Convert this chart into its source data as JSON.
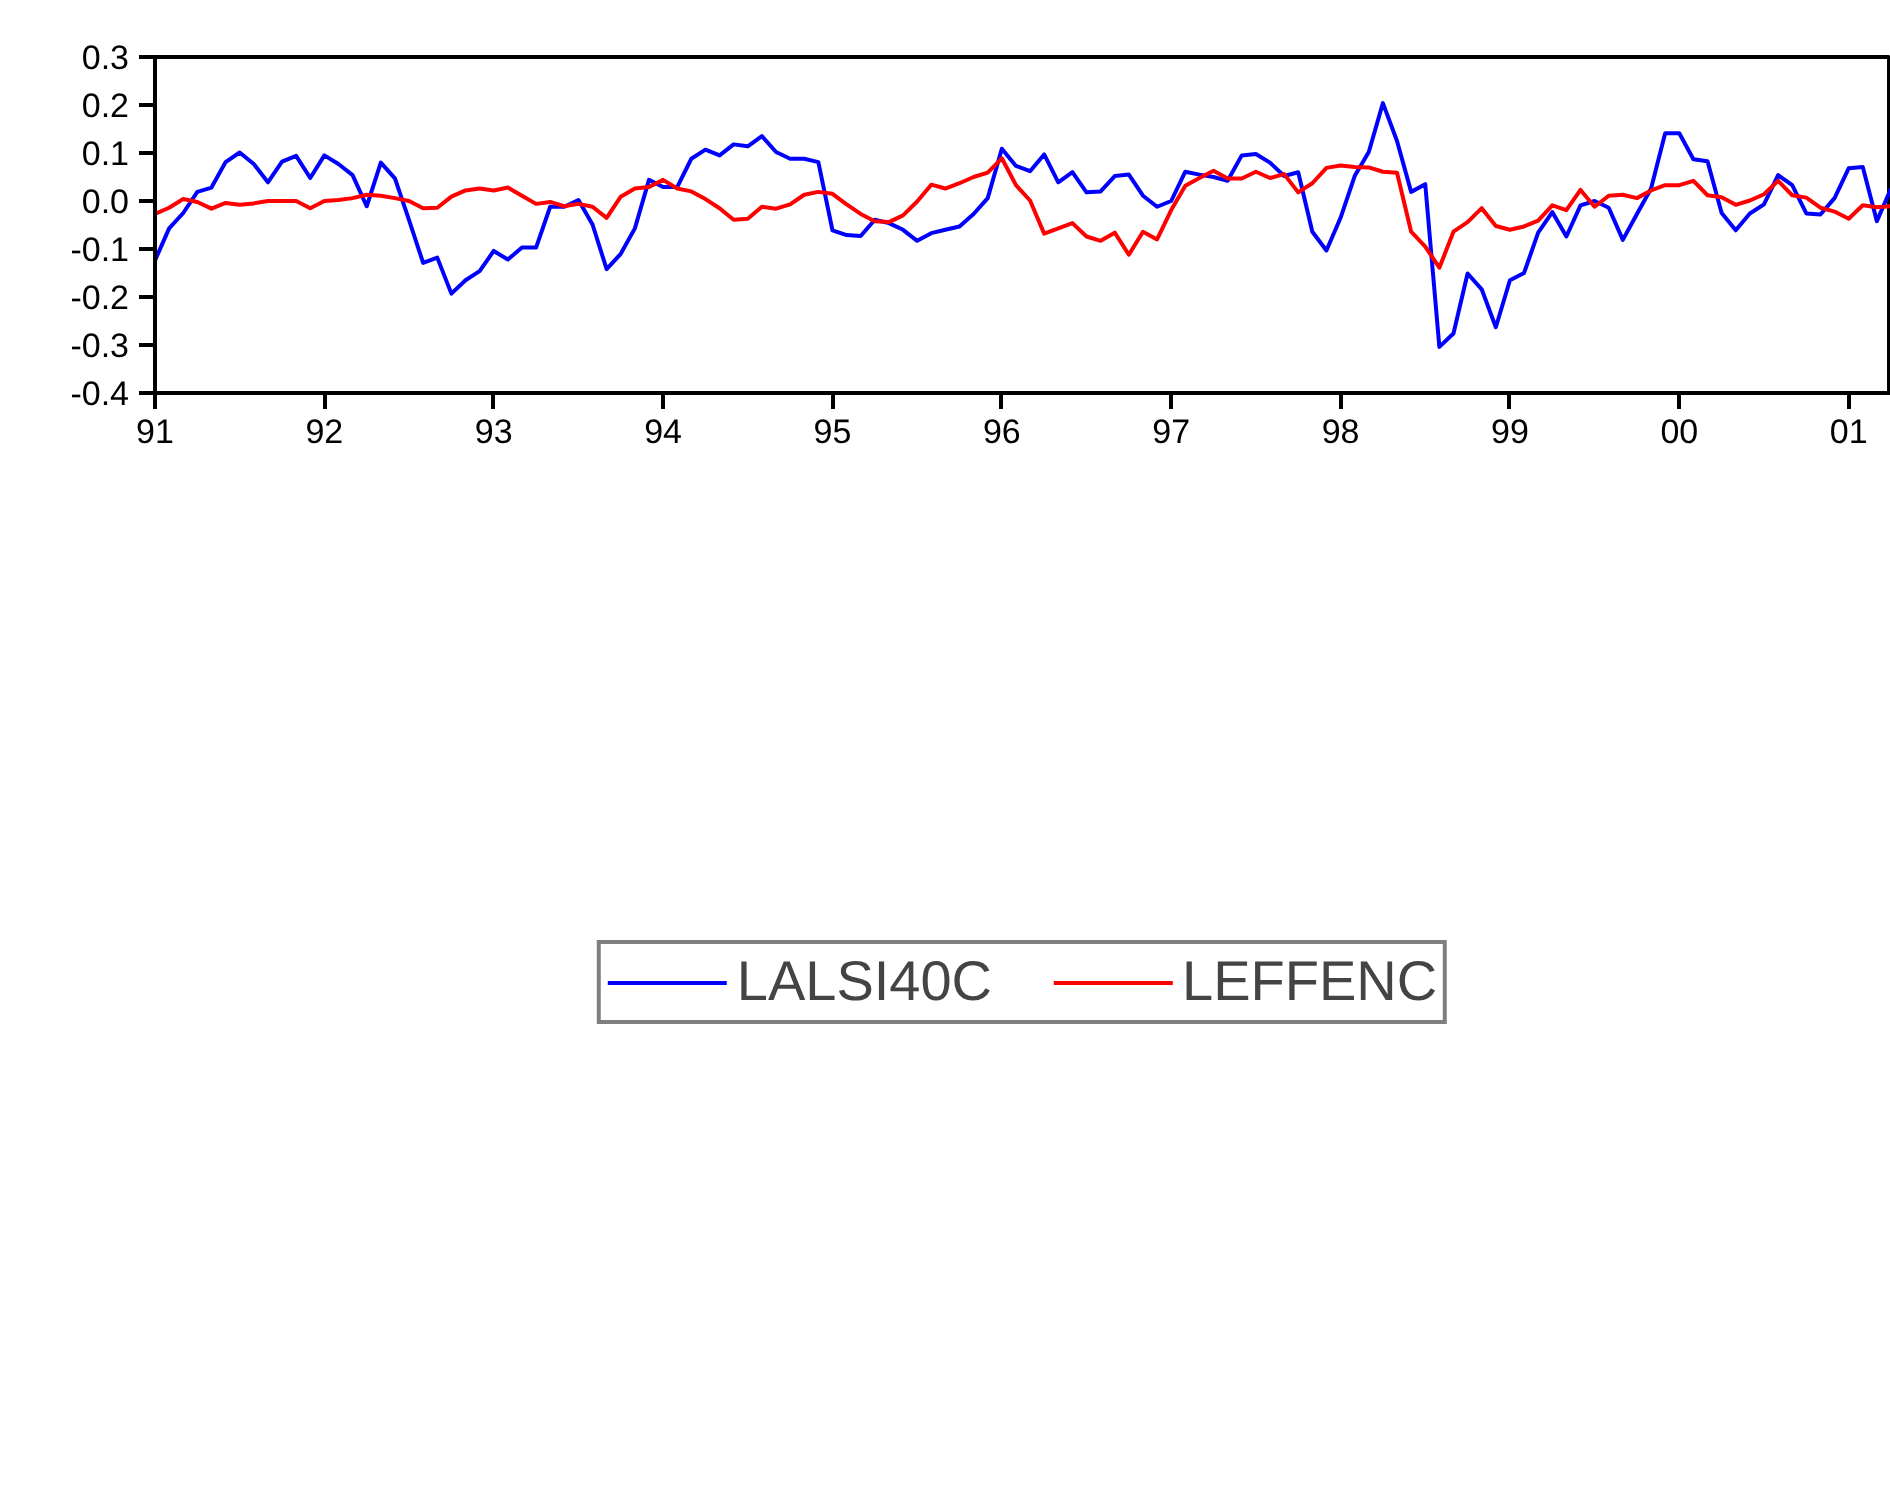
{
  "chart_data": {
    "type": "line",
    "x": [
      "1991-01",
      "1991-02",
      "1991-03",
      "1991-04",
      "1991-05",
      "1991-06",
      "1991-07",
      "1991-08",
      "1991-09",
      "1991-10",
      "1991-11",
      "1991-12",
      "1992-01",
      "1992-02",
      "1992-03",
      "1992-04",
      "1992-05",
      "1992-06",
      "1992-07",
      "1992-08",
      "1992-09",
      "1992-10",
      "1992-11",
      "1992-12",
      "1993-01",
      "1993-02",
      "1993-03",
      "1993-04",
      "1993-05",
      "1993-06",
      "1993-07",
      "1993-08",
      "1993-09",
      "1993-10",
      "1993-11",
      "1993-12",
      "1994-01",
      "1994-02",
      "1994-03",
      "1994-04",
      "1994-05",
      "1994-06",
      "1994-07",
      "1994-08",
      "1994-09",
      "1994-10",
      "1994-11",
      "1994-12",
      "1995-01",
      "1995-02",
      "1995-03",
      "1995-04",
      "1995-05",
      "1995-06",
      "1995-07",
      "1995-08",
      "1995-09",
      "1995-10",
      "1995-11",
      "1995-12",
      "1996-01",
      "1996-02",
      "1996-03",
      "1996-04",
      "1996-05",
      "1996-06",
      "1996-07",
      "1996-08",
      "1996-09",
      "1996-10",
      "1996-11",
      "1996-12",
      "1997-01",
      "1997-02",
      "1997-03",
      "1997-04",
      "1997-05",
      "1997-06",
      "1997-07",
      "1997-08",
      "1997-09",
      "1997-10",
      "1997-11",
      "1997-12",
      "1998-01",
      "1998-02",
      "1998-03",
      "1998-04",
      "1998-05",
      "1998-06",
      "1998-07",
      "1998-08",
      "1998-09",
      "1998-10",
      "1998-11",
      "1998-12",
      "1999-01",
      "1999-02",
      "1999-03",
      "1999-04",
      "1999-05",
      "1999-06",
      "1999-07",
      "1999-08",
      "1999-09",
      "1999-10",
      "1999-11",
      "1999-12",
      "2000-01",
      "2000-02",
      "2000-03",
      "2000-04",
      "2000-05",
      "2000-06",
      "2000-07",
      "2000-08",
      "2000-09",
      "2000-10",
      "2000-11",
      "2000-12",
      "2001-01",
      "2001-02",
      "2001-03",
      "2001-04"
    ],
    "series": [
      {
        "name": "LALSI40C",
        "color": "#0000ff",
        "values": [
          -0.124,
          -0.057,
          -0.025,
          0.019,
          0.028,
          0.081,
          0.101,
          0.077,
          0.039,
          0.082,
          0.094,
          0.048,
          0.095,
          0.077,
          0.054,
          -0.011,
          0.08,
          0.047,
          -0.04,
          -0.129,
          -0.118,
          -0.193,
          -0.165,
          -0.146,
          -0.104,
          -0.122,
          -0.097,
          -0.097,
          -0.012,
          -0.012,
          0.002,
          -0.049,
          -0.142,
          -0.11,
          -0.057,
          0.044,
          0.029,
          0.029,
          0.088,
          0.107,
          0.095,
          0.118,
          0.114,
          0.135,
          0.102,
          0.088,
          0.088,
          0.081,
          -0.061,
          -0.071,
          -0.073,
          -0.039,
          -0.046,
          -0.06,
          -0.083,
          -0.067,
          -0.06,
          -0.053,
          -0.027,
          0.006,
          0.109,
          0.073,
          0.062,
          0.097,
          0.039,
          0.06,
          0.018,
          0.02,
          0.052,
          0.055,
          0.011,
          -0.012,
          0.0,
          0.061,
          0.055,
          0.05,
          0.042,
          0.095,
          0.098,
          0.08,
          0.052,
          0.06,
          -0.064,
          -0.103,
          -0.035,
          0.052,
          0.102,
          0.204,
          0.125,
          0.019,
          0.035,
          -0.304,
          -0.276,
          -0.151,
          -0.184,
          -0.263,
          -0.165,
          -0.15,
          -0.066,
          -0.023,
          -0.074,
          -0.009,
          0.0,
          -0.014,
          -0.081,
          -0.027,
          0.026,
          0.141,
          0.141,
          0.087,
          0.083,
          -0.025,
          -0.061,
          -0.026,
          -0.007,
          0.054,
          0.033,
          -0.026,
          -0.028,
          0.006,
          0.068,
          0.071,
          -0.042,
          0.026
        ]
      },
      {
        "name": "LEFFENC",
        "color": "#ff0000",
        "values": [
          -0.027,
          -0.014,
          0.004,
          -0.002,
          -0.016,
          -0.004,
          -0.008,
          -0.005,
          0.0,
          0.0,
          0.0,
          -0.015,
          0.0,
          0.002,
          0.006,
          0.013,
          0.011,
          0.006,
          0.0,
          -0.015,
          -0.014,
          0.009,
          0.022,
          0.026,
          0.022,
          0.028,
          0.011,
          -0.006,
          -0.002,
          -0.011,
          -0.006,
          -0.012,
          -0.035,
          0.009,
          0.026,
          0.029,
          0.044,
          0.026,
          0.02,
          0.004,
          -0.015,
          -0.039,
          -0.037,
          -0.012,
          -0.016,
          -0.007,
          0.013,
          0.019,
          0.015,
          -0.007,
          -0.027,
          -0.042,
          -0.044,
          -0.03,
          -0.001,
          0.034,
          0.026,
          0.037,
          0.05,
          0.059,
          0.089,
          0.033,
          0.001,
          -0.068,
          -0.057,
          -0.046,
          -0.074,
          -0.083,
          -0.066,
          -0.112,
          -0.064,
          -0.08,
          -0.019,
          0.032,
          0.048,
          0.063,
          0.047,
          0.047,
          0.061,
          0.048,
          0.056,
          0.018,
          0.037,
          0.069,
          0.074,
          0.071,
          0.07,
          0.061,
          0.059,
          -0.064,
          -0.095,
          -0.139,
          -0.064,
          -0.044,
          -0.015,
          -0.052,
          -0.06,
          -0.053,
          -0.041,
          -0.009,
          -0.019,
          0.023,
          -0.012,
          0.011,
          0.013,
          0.006,
          0.022,
          0.033,
          0.033,
          0.042,
          0.012,
          0.008,
          -0.008,
          0.001,
          0.014,
          0.042,
          0.012,
          0.007,
          -0.014,
          -0.022,
          -0.037,
          -0.009,
          -0.013,
          -0.011
        ]
      }
    ],
    "xlim": [
      "1991-01",
      "2001-04"
    ],
    "xticks": [
      {
        "value": "1991-01",
        "label": "91"
      },
      {
        "value": "1992-01",
        "label": "92"
      },
      {
        "value": "1993-01",
        "label": "93"
      },
      {
        "value": "1994-01",
        "label": "94"
      },
      {
        "value": "1995-01",
        "label": "95"
      },
      {
        "value": "1996-01",
        "label": "96"
      },
      {
        "value": "1997-01",
        "label": "97"
      },
      {
        "value": "1998-01",
        "label": "98"
      },
      {
        "value": "1999-01",
        "label": "99"
      },
      {
        "value": "2000-01",
        "label": "00"
      },
      {
        "value": "2001-01",
        "label": "01"
      }
    ],
    "ylim": [
      -0.4,
      0.3
    ],
    "yticks": [
      -0.4,
      -0.3,
      -0.2,
      -0.1,
      {
        "value": 0,
        "label": "0.0"
      },
      0.1,
      0.2,
      0.3
    ],
    "grid": false,
    "legend": "bottom",
    "line_style": "solid",
    "marker": "none"
  }
}
